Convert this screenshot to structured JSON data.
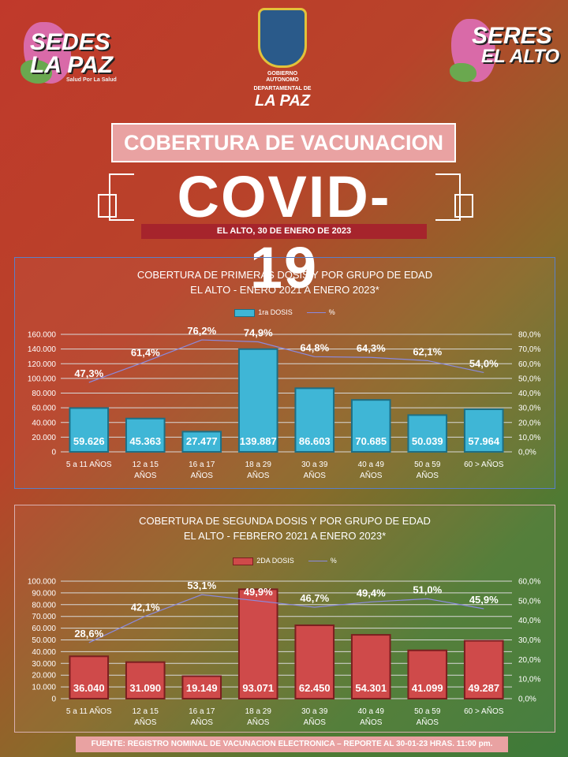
{
  "logos": {
    "left": {
      "word1": "SEDES",
      "word2": "LA PAZ",
      "tag": "Salud Por La Salud"
    },
    "right": {
      "word1": "SERES",
      "word2": "EL ALTO"
    },
    "center": {
      "line1": "GOBIERNO AUTONOMO",
      "line2": "DEPARTAMENTAL DE",
      "line3": "LA PAZ"
    }
  },
  "header": {
    "title": "COBERTURA DE VACUNACION",
    "covid": "COVID-19",
    "date": "EL ALTO, 30 DE ENERO DE 2023"
  },
  "footer": "FUENTE: REGISTRO NOMINAL DE VACUNACION ELECTRONICA – REPORTE AL 30-01-23 HRAS. 11:00 pm.",
  "colors": {
    "bar1": "#3fb6d6",
    "bar2": "#cf4a4a",
    "line": "#8a8ae0"
  },
  "chart_data": [
    {
      "type": "bar",
      "title": "COBERTURA DE PRIMERAS DOSIS Y POR GRUPO DE EDAD",
      "subtitle": "EL ALTO - ENERO 2021 A ENERO 2023*",
      "categories": [
        [
          "5 a 11 AÑOS"
        ],
        [
          "12 a 15",
          "AÑOS"
        ],
        [
          "16 a 17",
          "AÑOS"
        ],
        [
          "18 a 29",
          "AÑOS"
        ],
        [
          "30 a 39",
          "AÑOS"
        ],
        [
          "40 a 49",
          "AÑOS"
        ],
        [
          "50 a 59",
          "AÑOS"
        ],
        [
          "60 > AÑOS"
        ]
      ],
      "series": [
        {
          "name": "1ra DOSIS",
          "values": [
            59626,
            45363,
            27477,
            139887,
            86603,
            70685,
            50039,
            57964
          ],
          "labels": [
            "59.626",
            "45.363",
            "27.477",
            "139.887",
            "86.603",
            "70.685",
            "50.039",
            "57.964"
          ]
        },
        {
          "name": "%",
          "values": [
            47.3,
            61.4,
            76.2,
            74.9,
            64.8,
            64.3,
            62.1,
            54.0
          ],
          "labels": [
            "47,3%",
            "61,4%",
            "76,2%",
            "74,9%",
            "64,8%",
            "64,3%",
            "62,1%",
            "54,0%"
          ]
        }
      ],
      "ylim": [
        0,
        160000
      ],
      "yticks": [
        0,
        20000,
        40000,
        60000,
        80000,
        100000,
        120000,
        140000,
        160000
      ],
      "ytick_labels": [
        "0",
        "20.000",
        "40.000",
        "60.000",
        "80.000",
        "100.000",
        "120.000",
        "140.000",
        "160.000"
      ],
      "y2lim": [
        0,
        80
      ],
      "y2ticks": [
        0,
        10,
        20,
        30,
        40,
        50,
        60,
        70,
        80
      ],
      "y2tick_labels": [
        "0,0%",
        "10,0%",
        "20,0%",
        "30,0%",
        "40,0%",
        "50,0%",
        "60,0%",
        "70,0%",
        "80,0%"
      ],
      "grid": true,
      "legend": "top"
    },
    {
      "type": "bar",
      "title": "COBERTURA DE SEGUNDA DOSIS Y POR GRUPO DE EDAD",
      "subtitle": "EL ALTO - FEBRERO 2021 A ENERO 2023*",
      "categories": [
        [
          "5 a 11 AÑOS"
        ],
        [
          "12 a 15",
          "AÑOS"
        ],
        [
          "16 a 17",
          "AÑOS"
        ],
        [
          "18 a 29",
          "AÑOS"
        ],
        [
          "30 a 39",
          "AÑOS"
        ],
        [
          "40 a 49",
          "AÑOS"
        ],
        [
          "50 a 59",
          "AÑOS"
        ],
        [
          "60 > AÑOS"
        ]
      ],
      "series": [
        {
          "name": "2DA DOSIS",
          "values": [
            36040,
            31090,
            19149,
            93071,
            62450,
            54301,
            41099,
            49287
          ],
          "labels": [
            "36.040",
            "31.090",
            "19.149",
            "93.071",
            "62.450",
            "54.301",
            "41.099",
            "49.287"
          ]
        },
        {
          "name": "%",
          "values": [
            28.6,
            42.1,
            53.1,
            49.9,
            46.7,
            49.4,
            51.0,
            45.9
          ],
          "labels": [
            "28,6%",
            "42,1%",
            "53,1%",
            "49,9%",
            "46,7%",
            "49,4%",
            "51,0%",
            "45,9%"
          ]
        }
      ],
      "ylim": [
        0,
        100000
      ],
      "yticks": [
        0,
        10000,
        20000,
        30000,
        40000,
        50000,
        60000,
        70000,
        80000,
        90000,
        100000
      ],
      "ytick_labels": [
        "0",
        "10.000",
        "20.000",
        "30.000",
        "40.000",
        "50.000",
        "60.000",
        "70.000",
        "80.000",
        "90.000",
        "100.000"
      ],
      "y2lim": [
        0,
        60
      ],
      "y2ticks": [
        0,
        10,
        20,
        30,
        40,
        50,
        60
      ],
      "y2tick_labels": [
        "0,0%",
        "10,0%",
        "20,0%",
        "30,0%",
        "40,0%",
        "50,0%",
        "60,0%"
      ],
      "grid": true,
      "legend": "top"
    }
  ]
}
